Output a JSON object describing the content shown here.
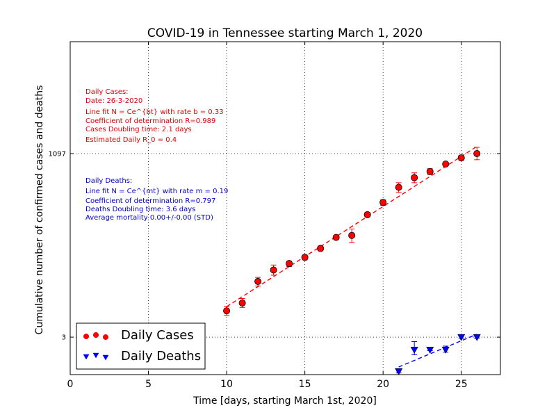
{
  "chart_data": {
    "type": "scatter",
    "title": "COVID-19 in Tennessee starting March 1, 2020",
    "xlabel": "Time [days, starting March 1st, 2020]",
    "ylabel": "Cumulative number of confirmed cases and deaths",
    "y_scale": "log",
    "xlim": [
      0,
      27.5
    ],
    "ylim": [
      0.9,
      40000
    ],
    "x_ticks": [
      0,
      5,
      10,
      15,
      20,
      25
    ],
    "x_tick_labels": [
      "0",
      "5",
      "10",
      "15",
      "20",
      "25"
    ],
    "y_ticks": [
      3,
      1097
    ],
    "y_tick_labels": [
      "3",
      "1097"
    ],
    "grid": true,
    "legend_position": "lower-left",
    "colors": {
      "cases": "#ff0000",
      "deaths": "#0000ff"
    },
    "series": [
      {
        "name": "Daily Cases",
        "marker": "circle",
        "x": [
          10,
          11,
          12,
          13,
          14,
          15,
          16,
          17,
          18,
          19,
          20,
          21,
          22,
          23,
          24,
          25,
          26
        ],
        "y": [
          7,
          9,
          18,
          26,
          32,
          39,
          52,
          74,
          79,
          154,
          228,
          371,
          505,
          615,
          784,
          957,
          1097
        ],
        "err_low": [
          6,
          7.8,
          15.5,
          22,
          29,
          36,
          48,
          69,
          63,
          143,
          208,
          315,
          430,
          560,
          740,
          880,
          900
        ],
        "err_high": [
          8,
          10.4,
          20.5,
          30.5,
          34.5,
          42,
          56,
          79,
          97,
          165,
          248,
          430,
          590,
          675,
          830,
          1040,
          1340
        ]
      },
      {
        "name": "Daily Deaths",
        "marker": "triangle-down",
        "x": [
          21,
          22,
          23,
          24,
          25,
          26
        ],
        "y": [
          1,
          2,
          2,
          2,
          3,
          3
        ],
        "err_low": [
          0.95,
          1.7,
          1.95,
          1.85,
          2.9,
          2.9
        ],
        "err_high": [
          1.05,
          2.6,
          2.1,
          2.25,
          3.1,
          3.1
        ]
      }
    ],
    "fit_lines": [
      {
        "series": "Daily Cases",
        "x": [
          10,
          26
        ],
        "y": [
          8,
          1380
        ]
      },
      {
        "series": "Daily Deaths",
        "x": [
          21,
          26
        ],
        "y": [
          1.15,
          3.3
        ]
      }
    ],
    "annotations": {
      "cases": [
        "Daily Cases:",
        "Date: 26-3-2020",
        "Line fit N = Ce^{bt} with rate b = 0.33",
        "Coefficient of determination R=0.989",
        "Cases Doubling time: 2.1 days",
        "Estimated Daily R_0 = 0.4"
      ],
      "deaths": [
        "Daily Deaths:",
        "Line fit N = Ce^{mt} with rate m = 0.19",
        "Coefficient of determination R=0.797",
        "Deaths Doubling time: 3.6 days",
        "Average mortality 0.00+/-0.00 (STD)"
      ]
    }
  }
}
